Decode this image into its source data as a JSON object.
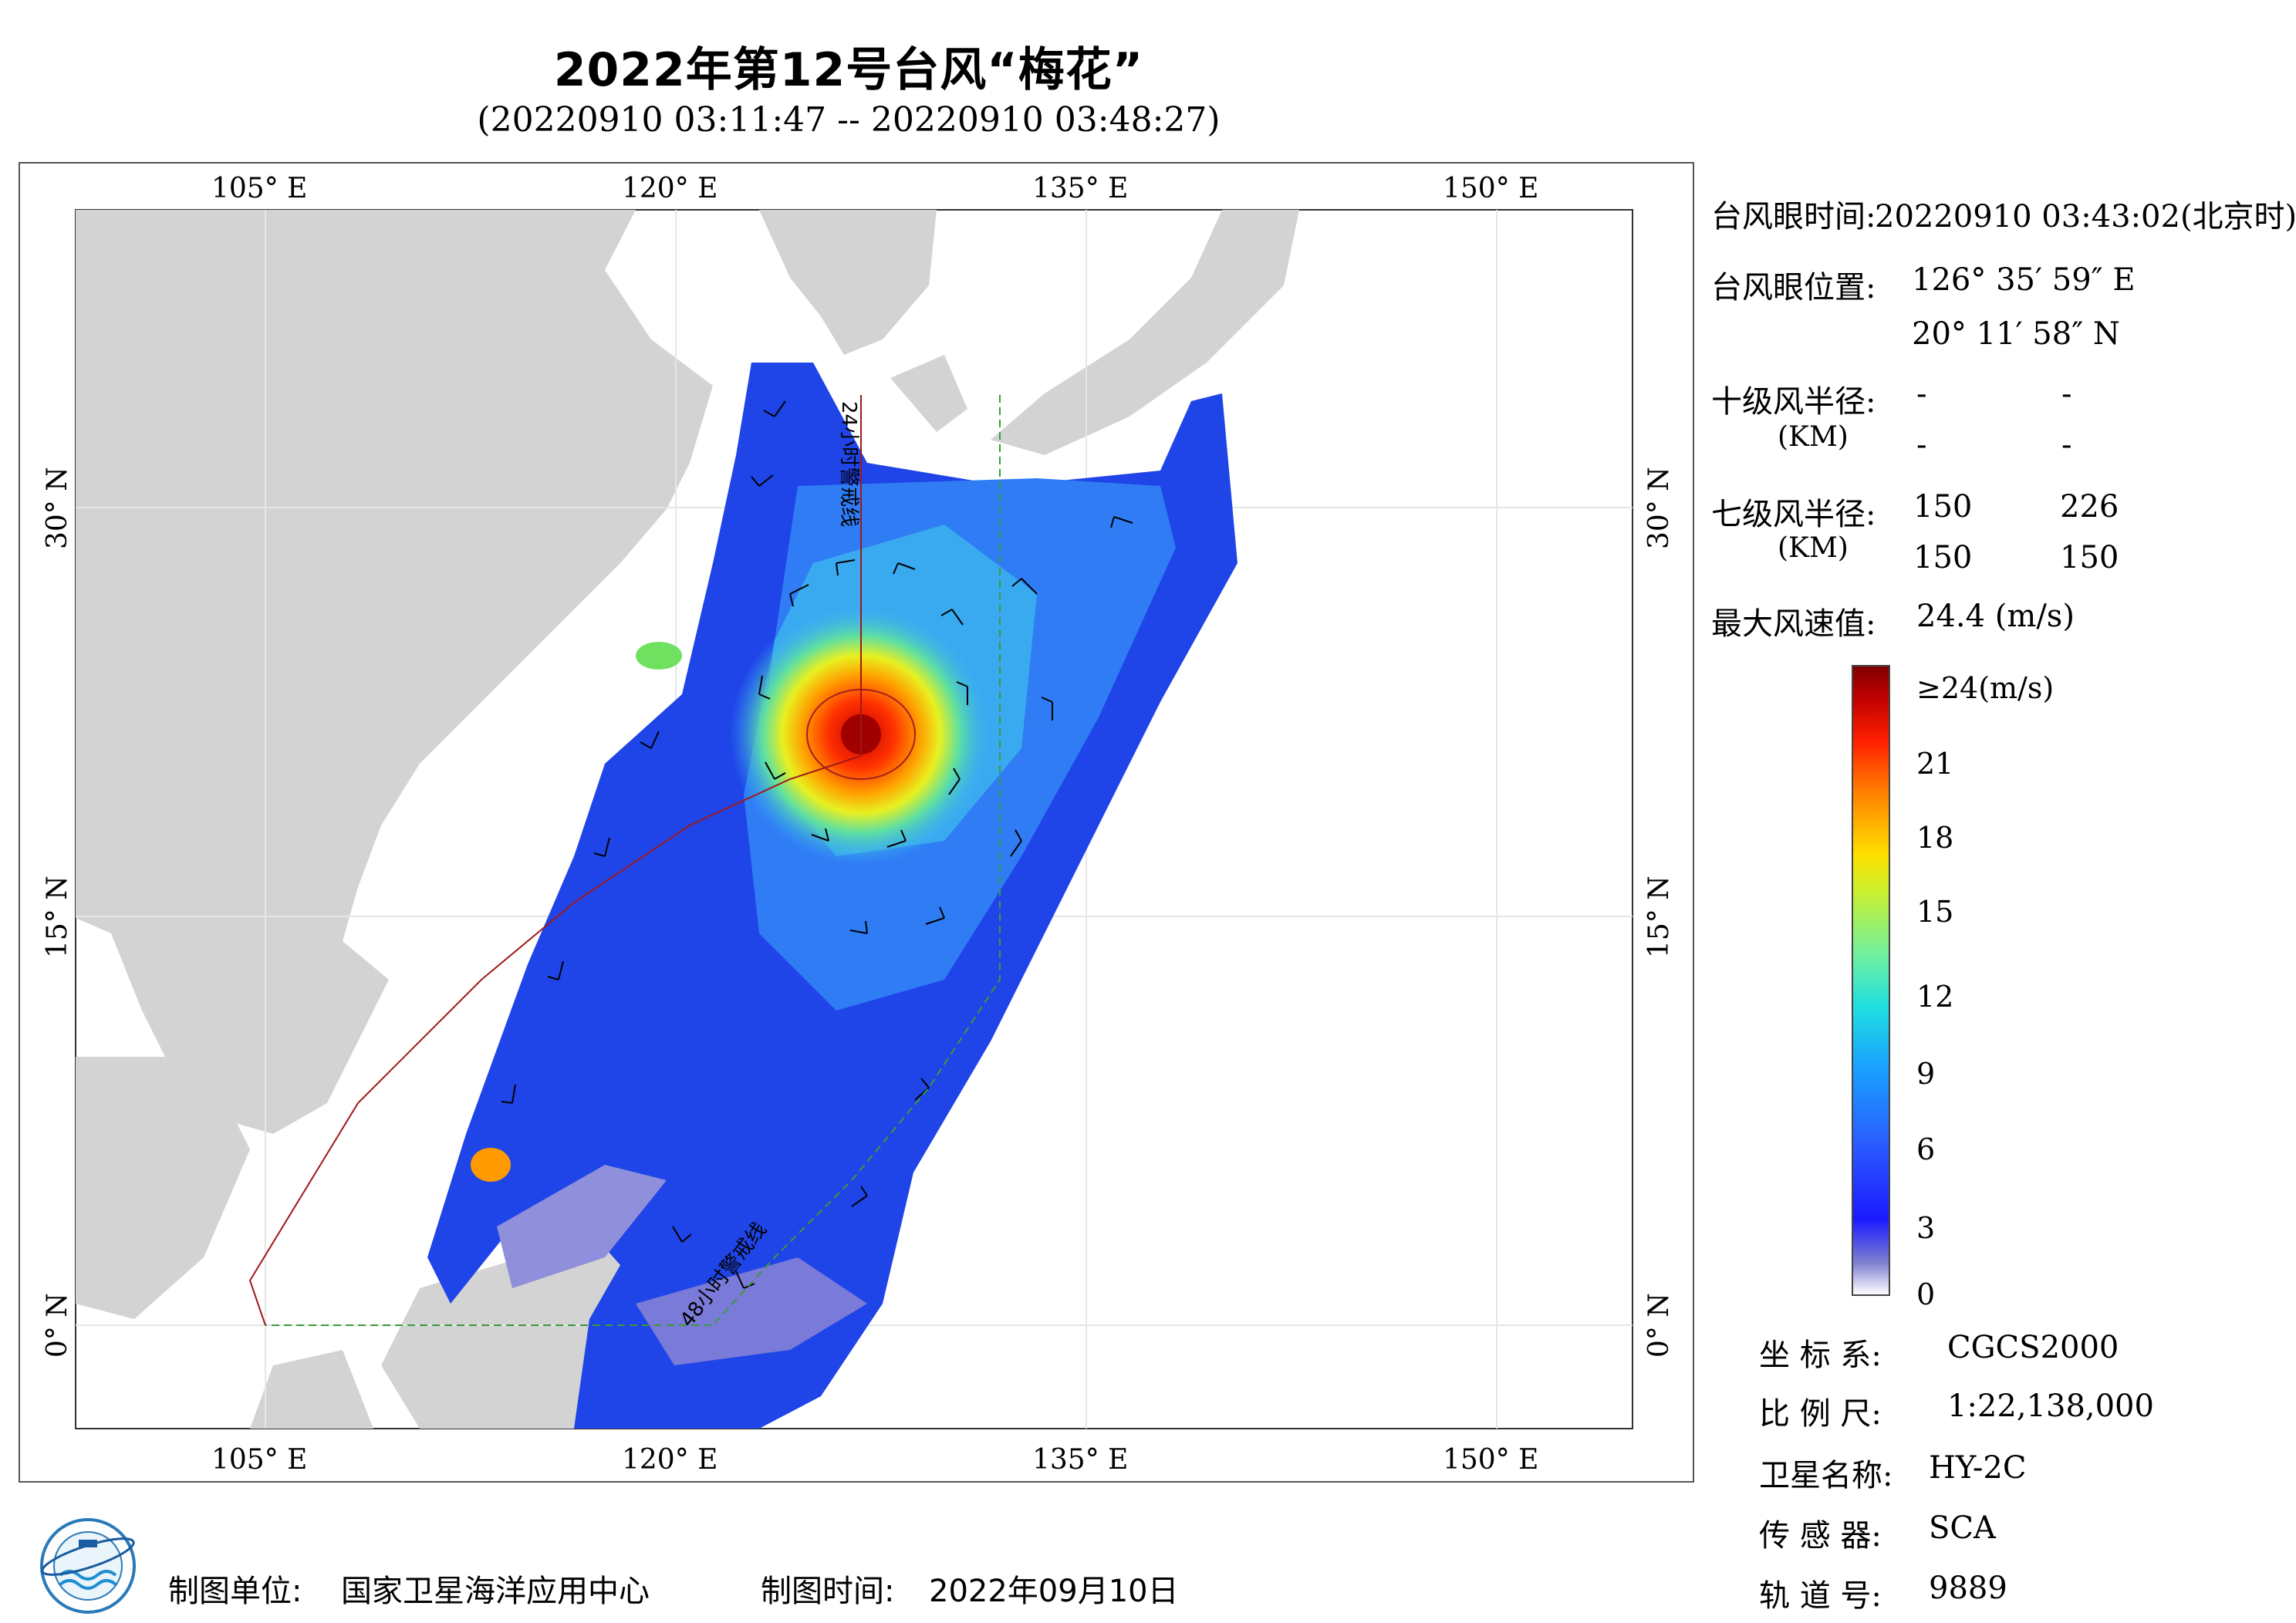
{
  "header": {
    "title": "2022年第12号台风“梅花”",
    "subtitle": "(20220910 03:11:47 -- 20220910 03:48:27)"
  },
  "map": {
    "lon_labels": [
      "105° E",
      "120° E",
      "135° E",
      "150° E"
    ],
    "lat_labels": [
      "30° N",
      "15° N",
      "0° N"
    ],
    "warning_line_24h": "24小时警戒线",
    "warning_line_48h": "48小时警戒线"
  },
  "info": {
    "eye_time_label": "台风眼时间:",
    "eye_time_value": "20220910 03:43:02(北京时)",
    "eye_pos_label": "台风眼位置:",
    "eye_lon": "126° 35′ 59″ E",
    "eye_lat": "20° 11′ 58″ N",
    "r10_label": "十级风半径:",
    "r10_unit": "(KM)",
    "r10_values": [
      "-",
      "-",
      "-",
      "-"
    ],
    "r7_label": "七级风半径:",
    "r7_unit": "(KM)",
    "r7_values": [
      "150",
      "226",
      "150",
      "150"
    ],
    "max_wind_label": "最大风速值:",
    "max_wind_value": "24.4  (m/s)"
  },
  "legend": {
    "title": "≥24(m/s)",
    "ticks": [
      "21",
      "18",
      "15",
      "12",
      "9",
      "6",
      "3",
      "0"
    ],
    "colors": {
      "low": "#ffffff",
      "mid": "#20e0e0",
      "high": "#800000"
    }
  },
  "meta": {
    "crs_label": "坐 标 系:",
    "crs_value": "CGCS2000",
    "scale_label": "比 例 尺:",
    "scale_value": "1:22,138,000",
    "sat_label": "卫星名称:",
    "sat_value": "HY-2C",
    "sensor_label": "传 感 器:",
    "sensor_value": "SCA",
    "orbit_label": "轨 道 号:",
    "orbit_value": "9889"
  },
  "footer": {
    "producer_label": "制图单位:",
    "producer_value": "国家卫星海洋应用中心",
    "date_label": "制图时间:",
    "date_value": "2022年09月10日"
  }
}
